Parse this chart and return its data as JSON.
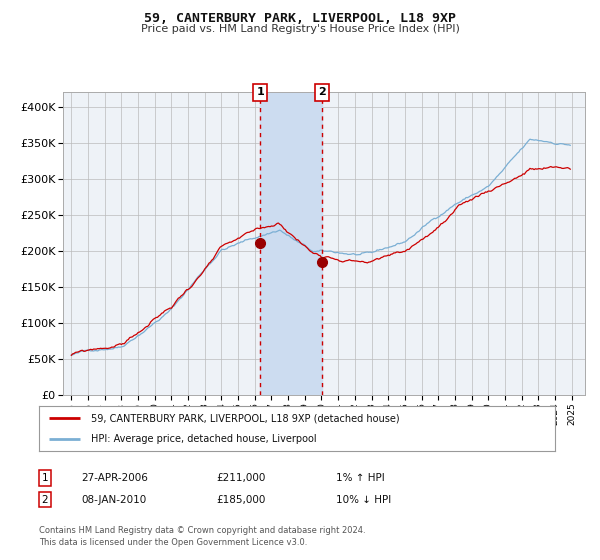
{
  "title": "59, CANTERBURY PARK, LIVERPOOL, L18 9XP",
  "subtitle": "Price paid vs. HM Land Registry's House Price Index (HPI)",
  "legend_line1": "59, CANTERBURY PARK, LIVERPOOL, L18 9XP (detached house)",
  "legend_line2": "HPI: Average price, detached house, Liverpool",
  "footnote1": "Contains HM Land Registry data © Crown copyright and database right 2024.",
  "footnote2": "This data is licensed under the Open Government Licence v3.0.",
  "table_row1_box": "1",
  "table_row1_date": "27-APR-2006",
  "table_row1_price": "£211,000",
  "table_row1_hpi": "1% ↑ HPI",
  "table_row2_box": "2",
  "table_row2_date": "08-JAN-2010",
  "table_row2_price": "£185,000",
  "table_row2_hpi": "10% ↓ HPI",
  "hpi_color": "#7bafd4",
  "price_color": "#cc0000",
  "bg_color": "#ffffff",
  "plot_bg_color": "#eef2f7",
  "shade_color": "#ccdcf0",
  "grid_color": "#bbbbbb",
  "event1_x": 2006.32,
  "event1_y": 211000,
  "event2_x": 2010.02,
  "event2_y": 185000,
  "ylim": [
    0,
    420000
  ],
  "xlim": [
    1994.5,
    2025.8
  ],
  "yticks": [
    0,
    50000,
    100000,
    150000,
    200000,
    250000,
    300000,
    350000,
    400000
  ],
  "ytick_labels": [
    "£0",
    "£50K",
    "£100K",
    "£150K",
    "£200K",
    "£250K",
    "£300K",
    "£350K",
    "£400K"
  ]
}
